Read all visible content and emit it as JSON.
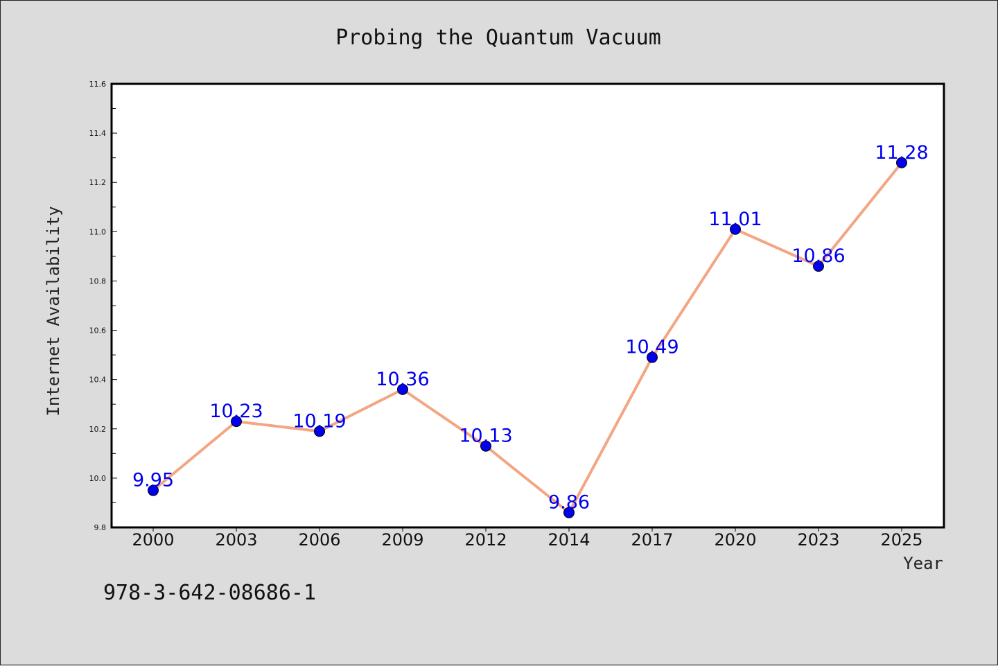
{
  "chart_data": {
    "type": "line",
    "title": "Probing the Quantum Vacuum",
    "xlabel": "Year",
    "ylabel": "Internet Availability",
    "categories": [
      "2000",
      "2003",
      "2006",
      "2009",
      "2012",
      "2014",
      "2017",
      "2020",
      "2023",
      "2025"
    ],
    "series": [
      {
        "values": [
          9.95,
          10.23,
          10.19,
          10.36,
          10.13,
          9.86,
          10.49,
          11.01,
          10.86,
          11.28
        ],
        "data_labels": [
          "9.95",
          "10.23",
          "10.19",
          "10.36",
          "10.13",
          "9.86",
          "10.49",
          "11.01",
          "10.86",
          "11.28"
        ]
      }
    ],
    "ylim": [
      9.8,
      11.6
    ],
    "yticks": [
      "9.8",
      "10.0",
      "10.2",
      "10.4",
      "10.6",
      "10.8",
      "11.0",
      "11.2",
      "11.4",
      "11.6"
    ],
    "grid": false,
    "legend": "none",
    "colors": {
      "line": "#f4a582",
      "marker": "#0000ee",
      "data_label": "#0000ee",
      "background": "#dcdcdc",
      "plot_background": "#ffffff"
    }
  },
  "footer": {
    "isbn": "978-3-642-08686-1"
  }
}
